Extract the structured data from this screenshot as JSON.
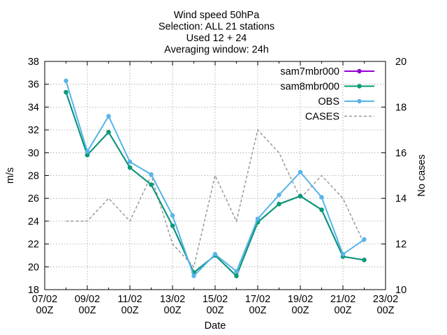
{
  "chart_data": {
    "type": "line",
    "title_lines": [
      "Wind speed 50hPa",
      "Selection: ALL      21 stations",
      "Used 12 + 24",
      "Averaging window: 24h"
    ],
    "xlabel": "Date",
    "ylabel": "m/s",
    "y2label": "No cases",
    "x_ticks": [
      {
        "pos": 0,
        "line1": "07/02",
        "line2": "00Z"
      },
      {
        "pos": 2,
        "line1": "09/02",
        "line2": "00Z"
      },
      {
        "pos": 4,
        "line1": "11/02",
        "line2": "00Z"
      },
      {
        "pos": 6,
        "line1": "13/02",
        "line2": "00Z"
      },
      {
        "pos": 8,
        "line1": "15/02",
        "line2": "00Z"
      },
      {
        "pos": 10,
        "line1": "17/02",
        "line2": "00Z"
      },
      {
        "pos": 12,
        "line1": "19/02",
        "line2": "00Z"
      },
      {
        "pos": 14,
        "line1": "21/02",
        "line2": "00Z"
      },
      {
        "pos": 16,
        "line1": "23/02",
        "line2": "00Z"
      }
    ],
    "xlim": [
      0,
      16
    ],
    "ylim": [
      18,
      38
    ],
    "yticks": [
      "18",
      "20",
      "22",
      "24",
      "26",
      "28",
      "30",
      "32",
      "34",
      "36",
      "38"
    ],
    "y2lim": [
      10,
      20
    ],
    "y2ticks": [
      "10",
      "12",
      "14",
      "16",
      "18",
      "20"
    ],
    "grid": true,
    "legend_position": "top-right",
    "series": [
      {
        "name": "sam7mbr000",
        "axis": "y",
        "color": "#9400d3",
        "marker": "filled-circle",
        "dash": false,
        "x": [
          1,
          2,
          3,
          4,
          5,
          6,
          7,
          8,
          9,
          10,
          11,
          12,
          13,
          14,
          15
        ],
        "values": [
          35.3,
          29.8,
          31.8,
          28.7,
          27.2,
          23.6,
          19.5,
          21.0,
          19.2,
          23.9,
          25.5,
          26.2,
          25.0,
          20.9,
          20.6
        ]
      },
      {
        "name": "sam8mbr000",
        "axis": "y",
        "color": "#009e73",
        "marker": "filled-circle",
        "dash": false,
        "x": [
          1,
          2,
          3,
          4,
          5,
          6,
          7,
          8,
          9,
          10,
          11,
          12,
          13,
          14,
          15
        ],
        "values": [
          35.3,
          29.8,
          31.8,
          28.7,
          27.2,
          23.6,
          19.5,
          21.0,
          19.2,
          23.9,
          25.5,
          26.2,
          25.0,
          20.9,
          20.6
        ]
      },
      {
        "name": "OBS",
        "axis": "y",
        "color": "#56b4e9",
        "marker": "filled-circle",
        "dash": false,
        "x": [
          1,
          2,
          3,
          4,
          5,
          6,
          7,
          8,
          9,
          10,
          11,
          12,
          13,
          14,
          15
        ],
        "values": [
          36.3,
          30.1,
          33.2,
          29.2,
          28.1,
          24.5,
          19.2,
          21.1,
          19.6,
          24.2,
          26.3,
          28.3,
          26.1,
          21.1,
          22.4
        ]
      },
      {
        "name": "CASES",
        "axis": "y2",
        "color": "#999999",
        "marker": "none",
        "dash": true,
        "x": [
          1,
          2,
          3,
          4,
          5,
          6,
          7,
          8,
          9,
          10,
          11,
          12,
          13,
          14,
          15
        ],
        "values": [
          13,
          13,
          14,
          13,
          15,
          12,
          11,
          15,
          13,
          17,
          16,
          14,
          15,
          14,
          12
        ]
      }
    ]
  }
}
